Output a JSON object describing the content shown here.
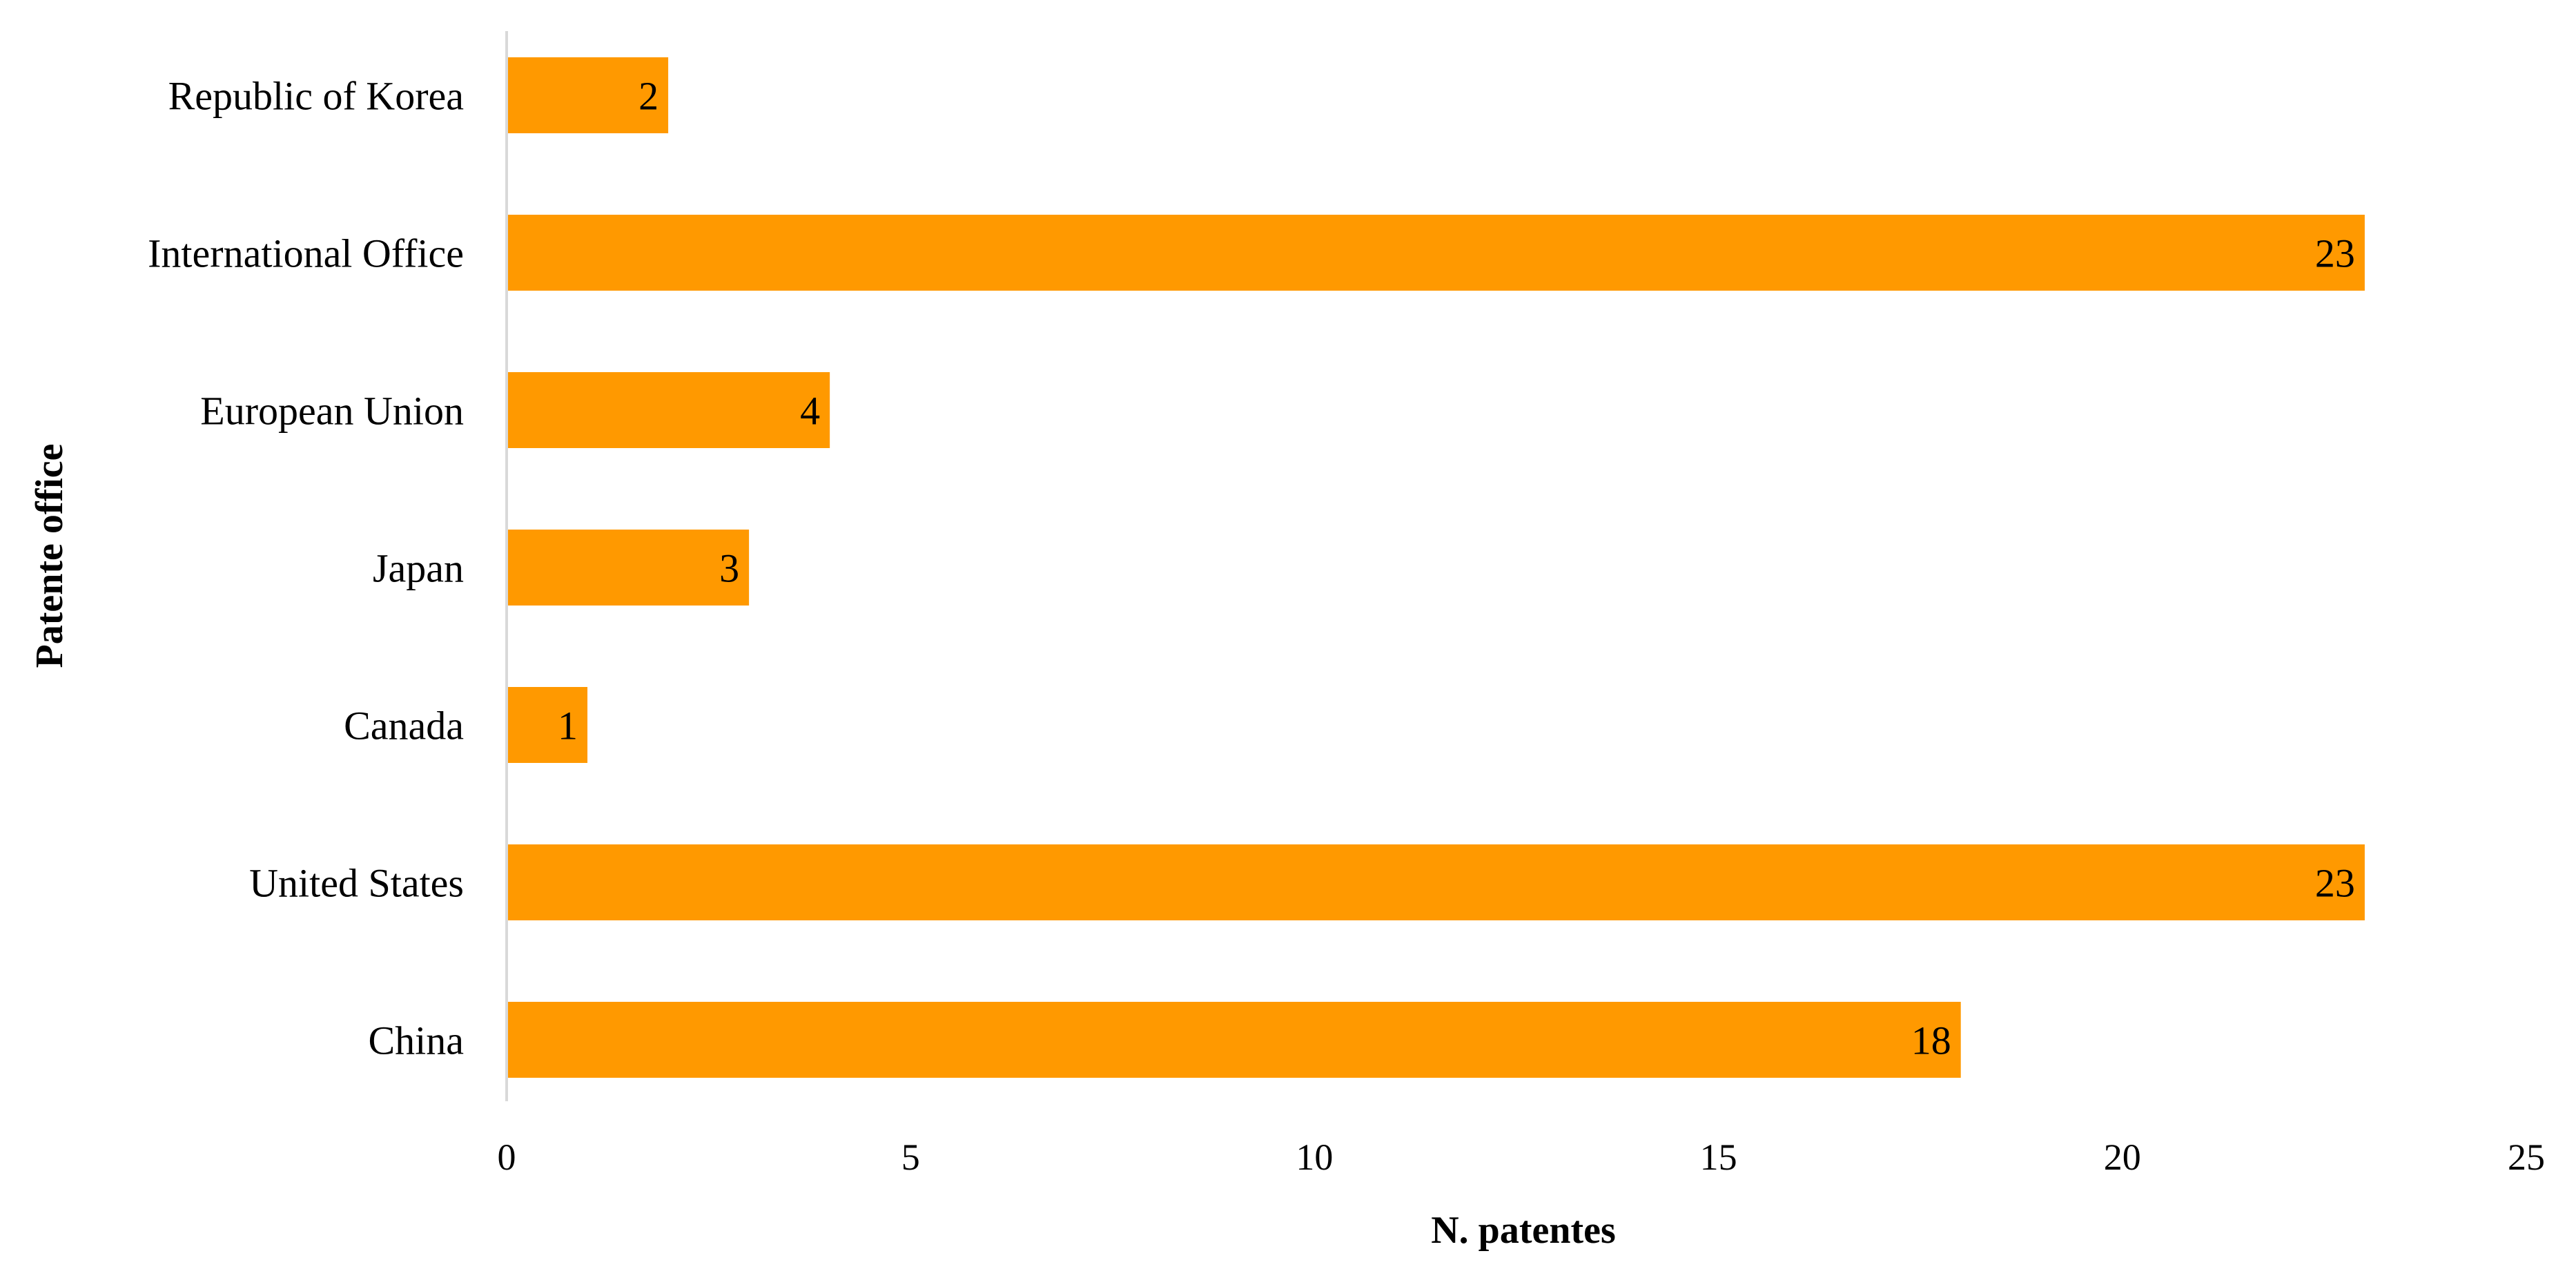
{
  "chart_data": {
    "type": "bar",
    "orientation": "horizontal",
    "categories": [
      "Republic of Korea",
      "International Office",
      "European Union",
      "Japan",
      "Canada",
      "United States",
      "China"
    ],
    "values": [
      2,
      23,
      4,
      3,
      1,
      23,
      18
    ],
    "data_labels": [
      "2",
      "23",
      "4",
      "3",
      "1",
      "23",
      "18"
    ],
    "xlabel": "N. patentes",
    "ylabel": "Patente office",
    "xlim": [
      0,
      25
    ],
    "xticks": [
      0,
      5,
      10,
      15,
      20,
      25
    ],
    "xtick_labels": [
      "0",
      "5",
      "10",
      "15",
      "20",
      "25"
    ],
    "grid": false,
    "legend": "none",
    "bar_color": "#FF9900",
    "axis_color": "#D9D9D9",
    "text_color": "#000000"
  }
}
